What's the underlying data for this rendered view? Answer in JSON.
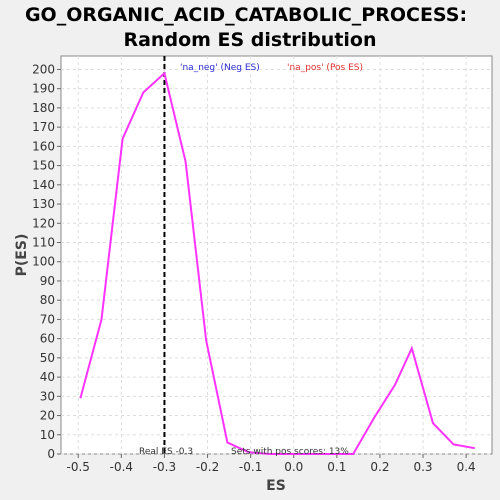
{
  "chart_data": {
    "type": "line",
    "title_line1": "GO_ORGANIC_ACID_CATABOLIC_PROCESS:",
    "title_line2": "Random ES distribution",
    "xlabel": "ES",
    "ylabel": "P(ES)",
    "xlim": [
      -0.54,
      0.46
    ],
    "ylim": [
      0,
      207
    ],
    "xticks": [
      "-0.5",
      "-0.4",
      "-0.3",
      "-0.2",
      "-0.1",
      "0.0",
      "0.1",
      "0.2",
      "0.3",
      "0.4"
    ],
    "xtick_values": [
      -0.5,
      -0.4,
      -0.3,
      -0.2,
      -0.1,
      0.0,
      0.1,
      0.2,
      0.3,
      0.4
    ],
    "yticks": [
      0,
      10,
      20,
      30,
      40,
      50,
      60,
      70,
      80,
      90,
      100,
      110,
      120,
      130,
      140,
      150,
      160,
      170,
      180,
      190,
      200
    ],
    "grid": true,
    "series": [
      {
        "color": "#ff33ff",
        "x": [
          -0.495,
          -0.446,
          -0.397,
          -0.349,
          -0.3,
          -0.251,
          -0.203,
          -0.154,
          -0.105,
          -0.057,
          -0.008,
          0.041,
          0.089,
          0.138,
          0.187,
          0.235,
          0.274,
          0.323,
          0.371,
          0.42
        ],
        "y": [
          29,
          70,
          164,
          188,
          198,
          152,
          59,
          6,
          1,
          0,
          0,
          0,
          0,
          0,
          19,
          36,
          55,
          16,
          5,
          3
        ]
      }
    ],
    "real_es": -0.3,
    "real_es_color": "#000000",
    "legend": [
      {
        "label": "'na_neg' (Neg ES)",
        "color": "#2a2ad6"
      },
      {
        "label": "'na_pos' (Pos ES)",
        "color": "#e03030"
      }
    ],
    "annotations": {
      "real_es_label": "Real ES -0.3",
      "pos_scores_label": "Sets with pos scores: 13%"
    }
  }
}
